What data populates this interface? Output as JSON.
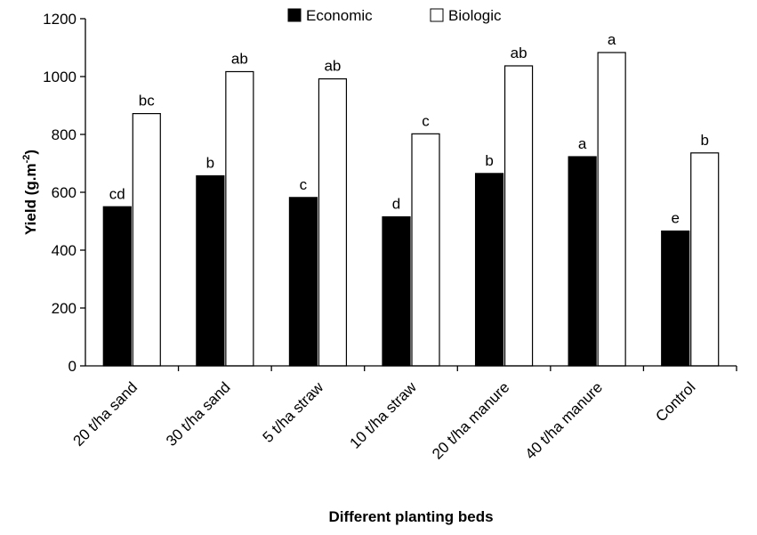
{
  "chart_data": {
    "type": "bar",
    "categories": [
      "20 t/ha sand",
      "30 t/ha sand",
      "5 t/ha straw",
      "10 t/ha straw",
      "20 t/ha manure",
      "40 t/ha manure",
      "Control"
    ],
    "series": [
      {
        "name": "Economic",
        "color": "#000000",
        "values": [
          550,
          657,
          582,
          515,
          665,
          723,
          466
        ],
        "labels": [
          "cd",
          "b",
          "c",
          "d",
          "b",
          "a",
          "e"
        ]
      },
      {
        "name": "Biologic",
        "color": "#ffffff",
        "values": [
          872,
          1017,
          992,
          802,
          1037,
          1083,
          736
        ],
        "labels": [
          "bc",
          "ab",
          "ab",
          "c",
          "ab",
          "a",
          "b"
        ]
      }
    ],
    "ylim": [
      0,
      1200
    ],
    "yticks": [
      0,
      200,
      400,
      600,
      800,
      1000,
      1200
    ],
    "ylabel": "Yield (g.m",
    "ylabel_superscript": "-2",
    "ylabel_suffix": ")",
    "xlabel": "Different planting beds",
    "legend_position": "top-center",
    "grid": false
  }
}
